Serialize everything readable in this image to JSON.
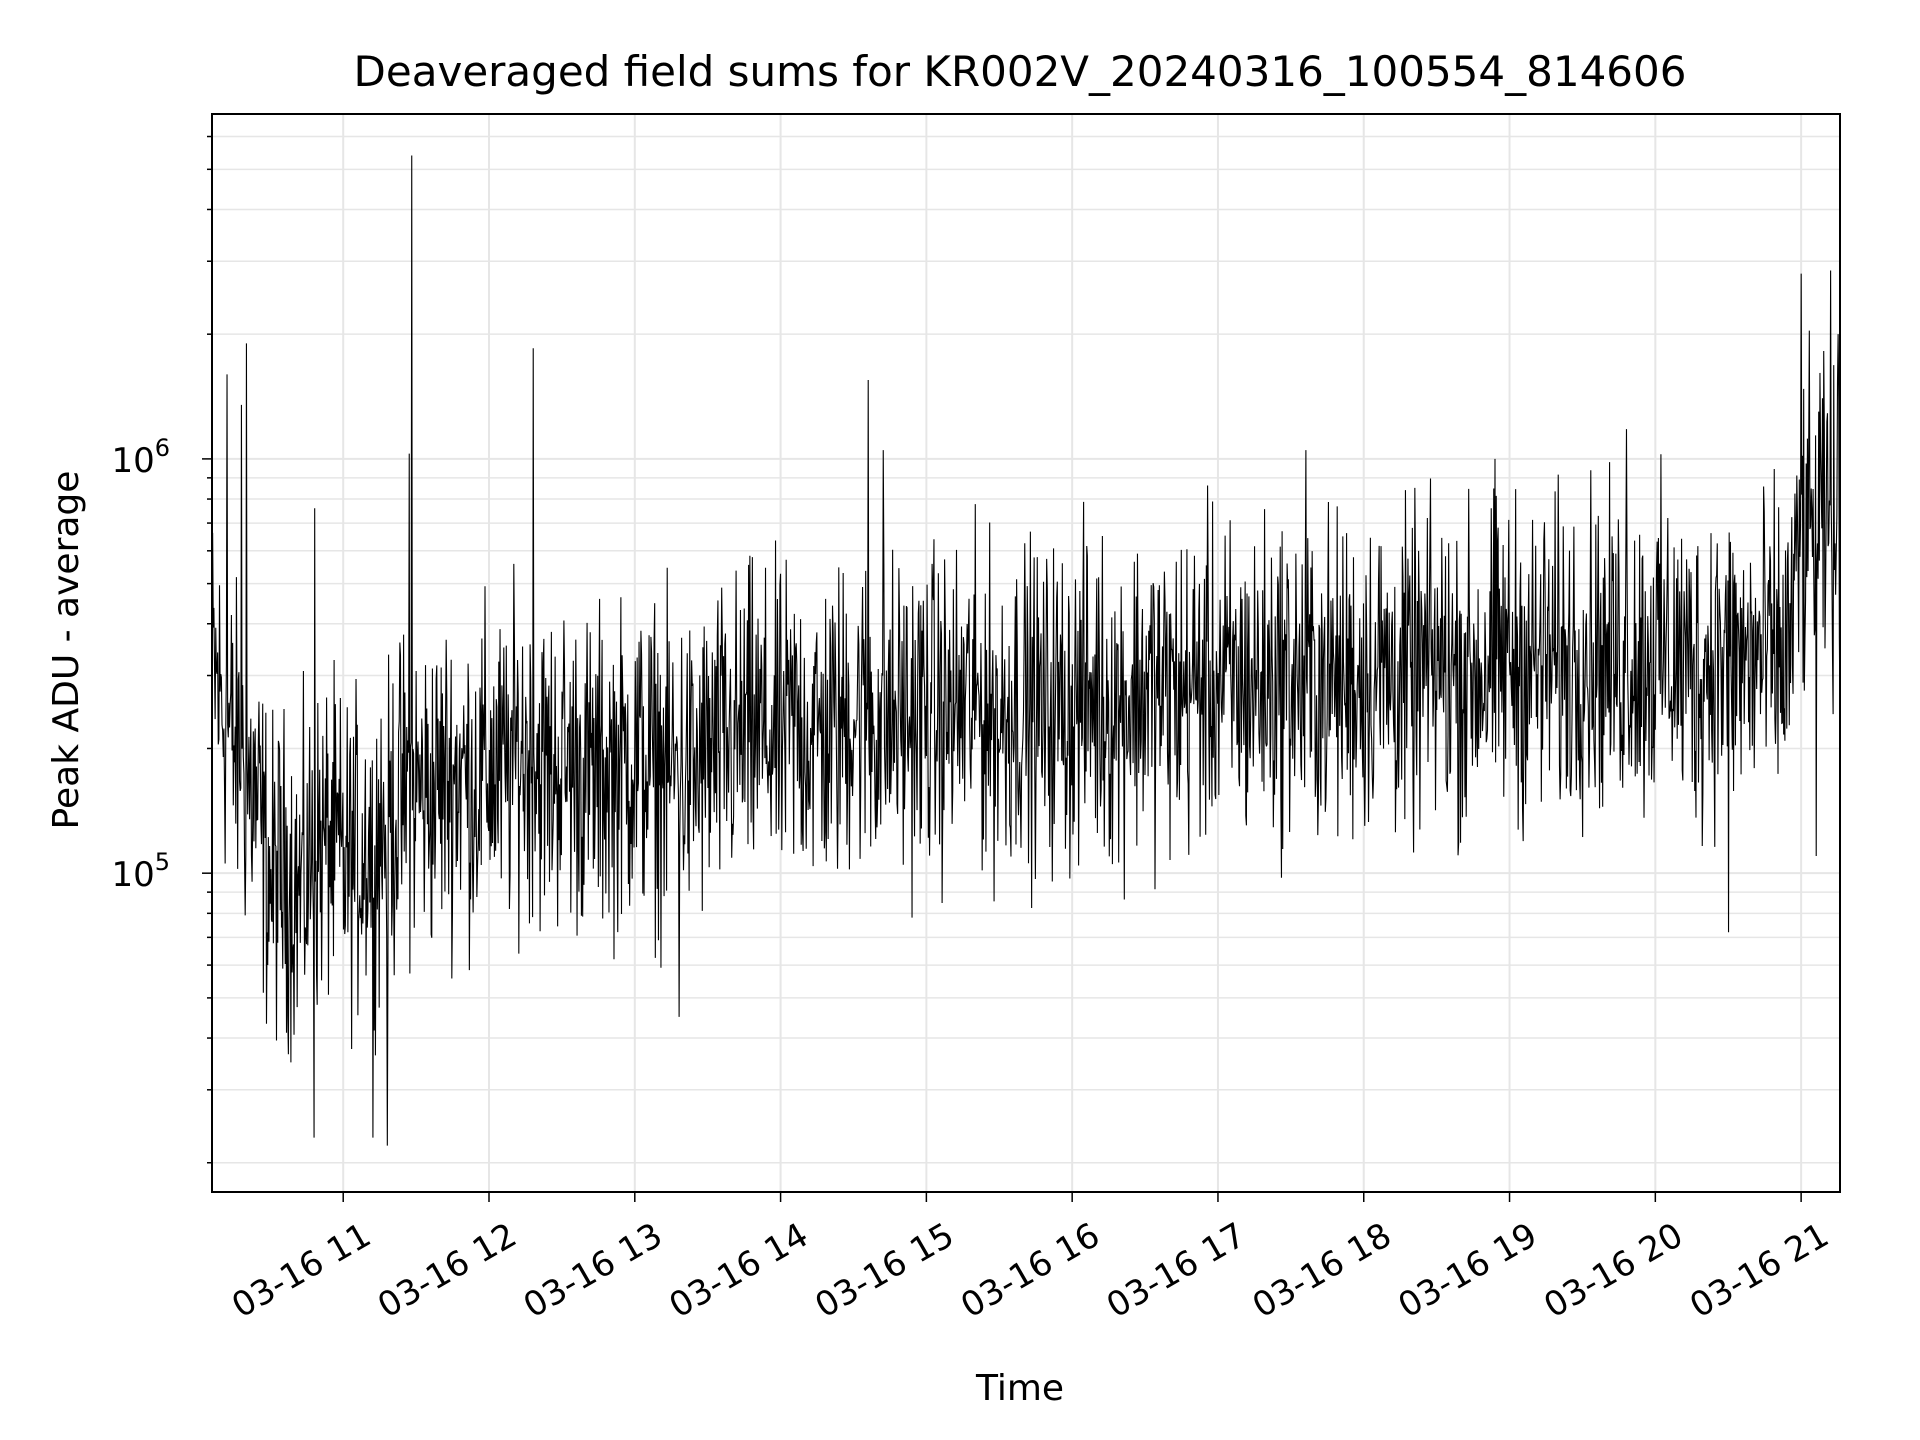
{
  "chart_data": {
    "type": "line",
    "title": "Deaveraged field sums for KR002V_20240316_100554_814606",
    "xlabel": "Time",
    "ylabel": "Peak ADU - average",
    "yscale": "log",
    "xlim": [
      "2024-03-16T10:06:00",
      "2024-03-16T21:16:00"
    ],
    "ylim": [
      17000,
      6800000
    ],
    "x_tick_labels": [
      "03-16 11",
      "03-16 12",
      "03-16 13",
      "03-16 14",
      "03-16 15",
      "03-16 16",
      "03-16 17",
      "03-16 18",
      "03-16 19",
      "03-16 20",
      "03-16 21"
    ],
    "y_ticks": [
      {
        "value": 100000,
        "base": "10",
        "exponent": "5"
      },
      {
        "value": 1000000,
        "base": "10",
        "exponent": "6"
      }
    ],
    "grid": true,
    "line_color": "#000000",
    "grid_color": "#e6e6e6",
    "series": [
      {
        "x": [
          "10:06",
          "10:12",
          "10:18",
          "10:24",
          "10:30",
          "10:36",
          "10:42",
          "10:48",
          "10:54",
          "11:00",
          "11:06",
          "11:12",
          "11:18",
          "11:24",
          "11:30",
          "11:36",
          "11:42",
          "11:48",
          "11:54",
          "12:00",
          "12:06",
          "12:12",
          "12:18",
          "12:24",
          "12:30",
          "12:36",
          "12:42",
          "12:48",
          "12:54",
          "13:00",
          "13:06",
          "13:12",
          "13:18",
          "13:24",
          "13:30",
          "13:36",
          "13:42",
          "13:48",
          "13:54",
          "14:00",
          "14:06",
          "14:12",
          "14:18",
          "14:24",
          "14:30",
          "14:36",
          "14:42",
          "14:48",
          "14:54",
          "15:00",
          "15:06",
          "15:12",
          "15:18",
          "15:24",
          "15:30",
          "15:36",
          "15:42",
          "15:48",
          "15:54",
          "16:00",
          "16:06",
          "16:12",
          "16:18",
          "16:24",
          "16:30",
          "16:36",
          "16:42",
          "16:48",
          "16:54",
          "17:00",
          "17:06",
          "17:12",
          "17:18",
          "17:24",
          "17:30",
          "17:36",
          "17:42",
          "17:48",
          "17:54",
          "18:00",
          "18:06",
          "18:12",
          "18:18",
          "18:24",
          "18:30",
          "18:36",
          "18:42",
          "18:48",
          "18:54",
          "19:00",
          "19:06",
          "19:12",
          "19:18",
          "19:24",
          "19:30",
          "19:36",
          "19:42",
          "19:48",
          "19:54",
          "20:00",
          "20:06",
          "20:12",
          "20:18",
          "20:24",
          "20:30",
          "20:36",
          "20:42",
          "20:48",
          "20:54",
          "21:00",
          "21:06",
          "21:12",
          "21:16"
        ],
        "values": [
          320000,
          230000,
          180000,
          150000,
          95000,
          100000,
          90000,
          110000,
          120000,
          105000,
          110000,
          125000,
          130000,
          150000,
          160000,
          155000,
          170000,
          175000,
          165000,
          180000,
          170000,
          200000,
          190000,
          175000,
          185000,
          180000,
          170000,
          175000,
          180000,
          190000,
          185000,
          175000,
          180000,
          170000,
          190000,
          200000,
          210000,
          220000,
          215000,
          210000,
          230000,
          220000,
          215000,
          225000,
          250000,
          240000,
          230000,
          240000,
          235000,
          250000,
          240000,
          245000,
          260000,
          250000,
          230000,
          260000,
          255000,
          240000,
          260000,
          250000,
          270000,
          265000,
          250000,
          270000,
          280000,
          275000,
          270000,
          280000,
          290000,
          290000,
          280000,
          285000,
          290000,
          290000,
          300000,
          280000,
          295000,
          290000,
          300000,
          300000,
          310000,
          300000,
          290000,
          305000,
          320000,
          310000,
          300000,
          310000,
          320000,
          330000,
          325000,
          315000,
          330000,
          320000,
          350000,
          345000,
          320000,
          350000,
          330000,
          340000,
          340000,
          320000,
          300000,
          340000,
          330000,
          320000,
          330000,
          330000,
          330000,
          600000,
          700000,
          650000,
          600000
        ],
        "spikes": [
          {
            "x": "10:12",
            "value": 1600000
          },
          {
            "x": "10:18",
            "value": 1350000
          },
          {
            "x": "10:20",
            "value": 1900000
          },
          {
            "x": "10:48",
            "value": 23000
          },
          {
            "x": "10:48",
            "value": 760000
          },
          {
            "x": "11:12",
            "value": 23000
          },
          {
            "x": "11:18",
            "value": 22000
          },
          {
            "x": "11:27",
            "value": 1030000
          },
          {
            "x": "11:28",
            "value": 5400000
          },
          {
            "x": "12:18",
            "value": 1850000
          },
          {
            "x": "13:18",
            "value": 45000
          },
          {
            "x": "14:36",
            "value": 1550000
          },
          {
            "x": "14:42",
            "value": 1050000
          },
          {
            "x": "17:36",
            "value": 1050000
          },
          {
            "x": "18:54",
            "value": 1000000
          },
          {
            "x": "19:48",
            "value": 1180000
          },
          {
            "x": "20:30",
            "value": 72000
          },
          {
            "x": "21:00",
            "value": 2800000
          },
          {
            "x": "21:06",
            "value": 110000
          },
          {
            "x": "21:12",
            "value": 2850000
          },
          {
            "x": "21:15",
            "value": 2000000
          }
        ]
      }
    ]
  }
}
